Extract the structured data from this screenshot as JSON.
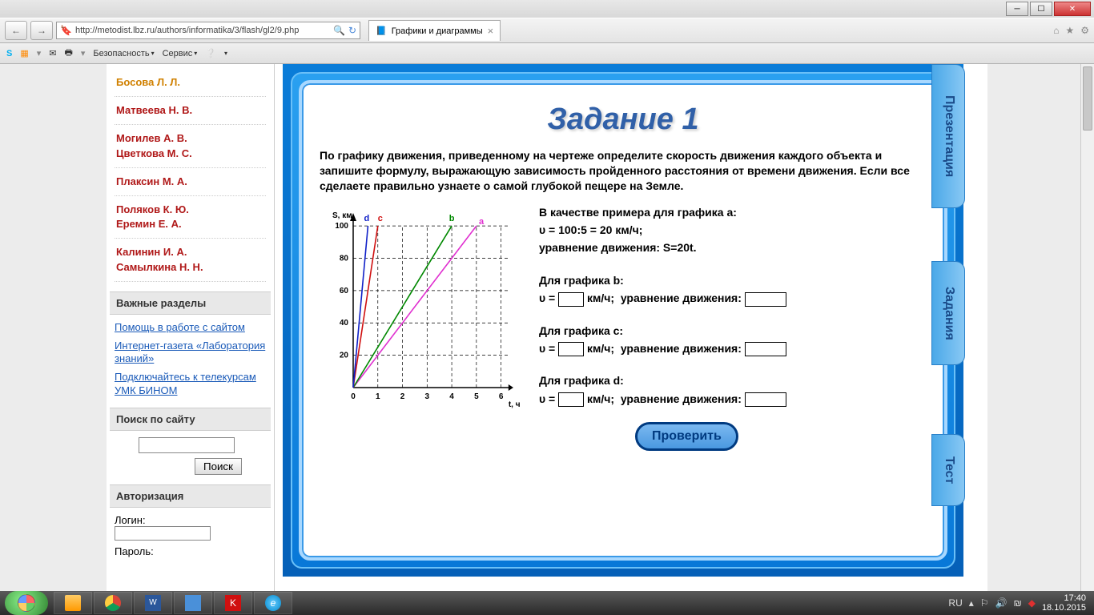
{
  "browser": {
    "url": "http://metodist.lbz.ru/authors/informatika/3/flash/gl2/9.php",
    "tab_title": "Графики и диаграммы",
    "toolbar": {
      "safety": "Безопасность",
      "service": "Сервис"
    }
  },
  "sidebar": {
    "authors": [
      "Босова Л. Л.",
      "Матвеева Н. В.",
      "Могилев А. В.\nЦветкова М. С.",
      "Плаксин М. А.",
      "Поляков К. Ю.\nЕремин Е. А.",
      "Калинин И. А.\nСамылкина Н. Н."
    ],
    "sections_heading": "Важные разделы",
    "links": [
      "Помощь в работе с сайтом",
      "Интернет-газета «Лаборатория знаний»",
      "Подключайтесь к телекурсам УМК БИНОМ"
    ],
    "search_heading": "Поиск по сайту",
    "search_button": "Поиск",
    "auth_heading": "Авторизация",
    "login_label": "Логин:",
    "password_label": "Пароль:"
  },
  "task": {
    "title": "Задание 1",
    "prompt": "По графику движения, приведенному на чертеже определите скорость движения каждого объекта и запишите формулу, выражающую зависимость пройденного расстояния от времени движения. Если все сделаете правильно узнаете о самой глубокой пещере на Земле.",
    "example_intro": "В качестве примера для графика а:",
    "example_line1": "υ = 100:5 = 20 км/ч;",
    "example_line2": "уравнение движения: S=20t.",
    "for_b": "Для графика b:",
    "for_c": "Для графика c:",
    "for_d": "Для графика d:",
    "speed_prefix": "υ = ",
    "speed_unit": "км/ч;",
    "eq_label": "уравнение движения:",
    "check": "Проверить"
  },
  "chart": {
    "type": "line",
    "x_label": "t, ч",
    "y_label": "S, км",
    "xlim": [
      0,
      6.5
    ],
    "ylim": [
      0,
      105
    ],
    "x_ticks": [
      0,
      1,
      2,
      3,
      4,
      5,
      6
    ],
    "y_ticks": [
      0,
      20,
      40,
      60,
      80,
      100
    ],
    "grid_color": "#000000",
    "grid_dash": "4 3",
    "axis_color": "#000000",
    "background_color": "#ffffff",
    "label_fontsize": 10,
    "series": [
      {
        "name": "a",
        "color": "#e030d0",
        "points": [
          [
            0,
            0
          ],
          [
            5,
            100
          ]
        ],
        "label_pos": [
          5.2,
          100
        ]
      },
      {
        "name": "b",
        "color": "#008800",
        "points": [
          [
            0,
            0
          ],
          [
            4,
            100
          ]
        ],
        "label_pos": [
          4,
          102
        ]
      },
      {
        "name": "c",
        "color": "#d01010",
        "points": [
          [
            0,
            0
          ],
          [
            1,
            100
          ]
        ],
        "label_pos": [
          1.1,
          102
        ]
      },
      {
        "name": "d",
        "color": "#1020c8",
        "points": [
          [
            0,
            0
          ],
          [
            0.6,
            100
          ]
        ],
        "label_pos": [
          0.55,
          102
        ]
      }
    ],
    "line_width": 1.6
  },
  "side_tabs": {
    "t1": "Презентация",
    "t2": "Задания",
    "t3": "Тест"
  },
  "tray": {
    "lang": "RU",
    "time": "17:40",
    "date": "18.10.2015"
  }
}
